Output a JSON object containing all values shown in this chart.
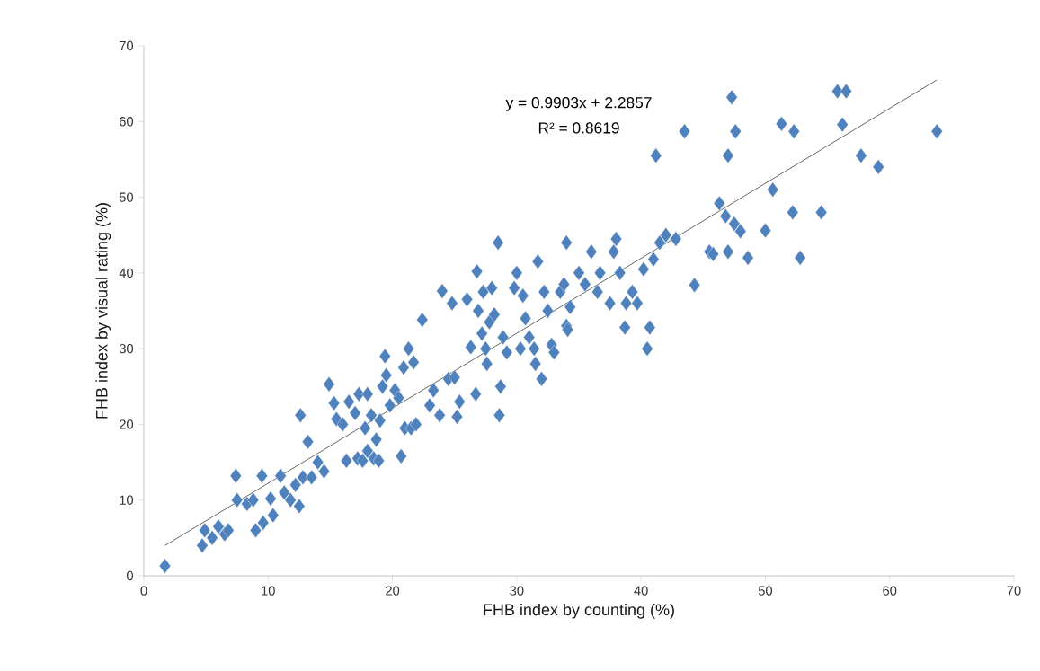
{
  "chart_data": {
    "type": "scatter",
    "xlabel": "FHB index by counting (%)",
    "ylabel": "FHB index by visual rating (%)",
    "annotations": [
      "y = 0.9903x + 2.2857",
      "R² = 0.8619"
    ],
    "xlim": [
      0,
      70
    ],
    "ylim": [
      0,
      70
    ],
    "xticks": [
      0,
      10,
      20,
      30,
      40,
      50,
      60,
      70
    ],
    "yticks": [
      0,
      10,
      20,
      30,
      40,
      50,
      60,
      70
    ],
    "grid": false,
    "marker": "diamond",
    "series": [
      {
        "color": "#4f81bd",
        "x": [
          1.7,
          4.7,
          4.9,
          5.5,
          6.0,
          6.5,
          6.8,
          7.4,
          7.5,
          8.3,
          8.8,
          9.0,
          9.5,
          9.6,
          10.2,
          10.4,
          11.0,
          11.3,
          11.8,
          12.2,
          12.5,
          12.6,
          12.8,
          13.2,
          13.5,
          14.0,
          14.5,
          14.9,
          15.3,
          15.5,
          16.0,
          16.3,
          16.5,
          17.0,
          17.2,
          17.3,
          17.6,
          17.8,
          18.0,
          18.0,
          18.3,
          18.5,
          18.7,
          18.9,
          19.0,
          19.2,
          19.4,
          19.5,
          19.8,
          20.2,
          20.5,
          20.7,
          20.9,
          21.0,
          21.3,
          21.5,
          21.7,
          21.9,
          22.4,
          23.0,
          23.3,
          23.8,
          24.0,
          24.5,
          24.8,
          25.0,
          25.2,
          25.4,
          26.0,
          26.3,
          26.7,
          26.8,
          26.9,
          27.2,
          27.3,
          27.5,
          27.6,
          27.8,
          28.0,
          28.2,
          28.5,
          28.6,
          28.7,
          28.9,
          29.2,
          29.8,
          30.0,
          30.3,
          30.5,
          30.7,
          31.0,
          31.4,
          31.5,
          31.7,
          32.0,
          32.2,
          32.5,
          32.8,
          33.0,
          33.5,
          33.8,
          34.0,
          34.0,
          34.1,
          34.3,
          35.0,
          35.5,
          36.0,
          36.5,
          36.7,
          37.5,
          37.8,
          38.0,
          38.3,
          38.7,
          38.8,
          39.3,
          39.7,
          40.2,
          40.5,
          40.7,
          41.0,
          41.2,
          41.5,
          42.0,
          42.8,
          43.5,
          44.3,
          45.5,
          45.8,
          46.3,
          46.8,
          47.0,
          47.0,
          47.3,
          47.5,
          47.6,
          48.0,
          48.6,
          50.0,
          50.6,
          51.3,
          52.2,
          52.3,
          52.8,
          54.5,
          55.8,
          56.2,
          56.5,
          57.7,
          59.1,
          63.8
        ],
        "values": [
          1.3,
          4.0,
          6.0,
          5.0,
          6.5,
          5.5,
          6.0,
          13.2,
          10.0,
          9.5,
          10.0,
          6.0,
          13.2,
          7.0,
          10.2,
          8.0,
          13.2,
          11.0,
          10.0,
          12.0,
          9.2,
          21.2,
          13.0,
          17.7,
          13.0,
          15.0,
          13.8,
          25.3,
          22.8,
          20.7,
          20.0,
          15.2,
          23.0,
          21.5,
          15.5,
          24.0,
          15.2,
          19.5,
          24.0,
          16.5,
          21.2,
          15.5,
          18.0,
          15.2,
          20.5,
          25.0,
          29.0,
          26.5,
          22.5,
          24.5,
          23.5,
          15.8,
          27.5,
          19.5,
          30.0,
          19.5,
          28.2,
          20.0,
          33.8,
          22.5,
          24.5,
          21.2,
          37.6,
          26.0,
          36.0,
          26.2,
          21.0,
          23.0,
          36.5,
          30.2,
          24.0,
          40.2,
          35.0,
          32.0,
          37.5,
          30.0,
          28.0,
          33.5,
          38.0,
          34.5,
          44.0,
          21.2,
          25.0,
          31.5,
          29.5,
          38.0,
          40.0,
          30.0,
          37.0,
          34.0,
          31.5,
          30.0,
          28.0,
          41.5,
          26.0,
          37.5,
          35.0,
          30.5,
          29.5,
          37.5,
          38.5,
          44.0,
          33.0,
          32.5,
          35.5,
          40.0,
          38.5,
          42.8,
          37.5,
          40.0,
          36.0,
          42.8,
          44.5,
          40.0,
          32.8,
          36.0,
          37.5,
          36.0,
          40.5,
          30.0,
          32.8,
          41.8,
          55.5,
          44.0,
          45.0,
          44.5,
          58.7,
          38.4,
          42.8,
          42.5,
          49.2,
          47.5,
          55.5,
          42.8,
          63.2,
          46.5,
          58.7,
          45.5,
          42.0,
          45.6,
          51.0,
          59.7,
          48.0,
          58.7,
          42.0,
          48.0,
          64.0,
          59.6,
          64.0,
          55.5,
          54.0,
          58.7
        ]
      },
      {
        "type": "line",
        "color": "#404040",
        "marker": "none",
        "line_style": "solid",
        "x": [
          1.7,
          63.8
        ],
        "values": [
          4.0,
          65.5
        ]
      }
    ]
  }
}
